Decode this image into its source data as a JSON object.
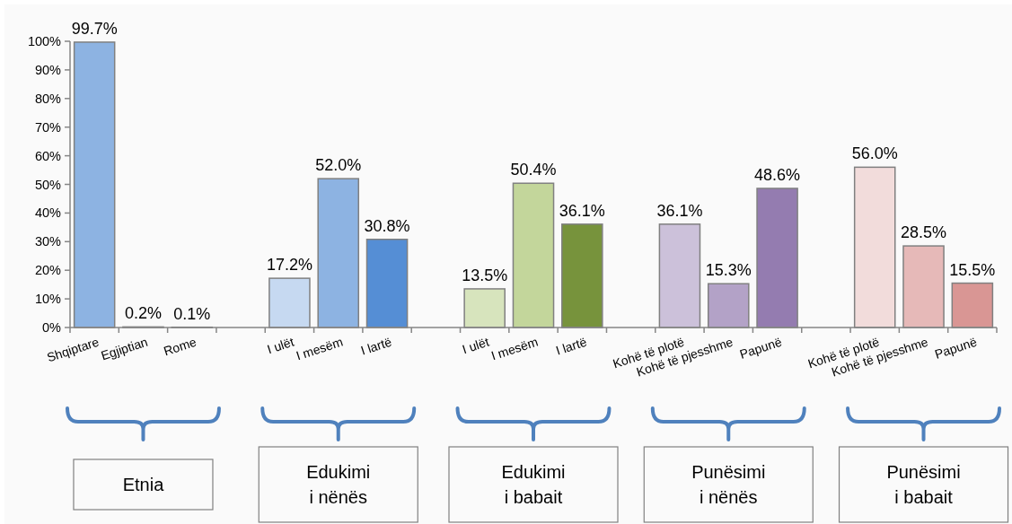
{
  "chart_data": {
    "type": "bar",
    "categories": [
      "Shqiptare",
      "Egjiptian",
      "Rome",
      null,
      "I ulët",
      "I mesëm",
      "I lartë",
      null,
      "I ulët",
      "I mesëm",
      "I lartë",
      null,
      "Kohë të plotë",
      "Kohë të pjesshme",
      "Papunë",
      null,
      "Kohë të plotë",
      "Kohë të pjesshme",
      "Papunë"
    ],
    "values": [
      99.7,
      0.2,
      0.1,
      null,
      17.2,
      52.0,
      30.8,
      null,
      13.5,
      50.4,
      36.1,
      null,
      36.1,
      15.3,
      48.6,
      null,
      56.0,
      28.5,
      15.5
    ],
    "colors": [
      "#8db3e2",
      "#8db3e2",
      "#8db3e2",
      null,
      "#c6d9f1",
      "#8db3e2",
      "#558ed5",
      null,
      "#d7e4bd",
      "#c3d69b",
      "#77933c",
      null,
      "#ccc1da",
      "#b3a2c7",
      "#947cb0",
      null,
      "#f2dcdb",
      "#e6b9b8",
      "#d99694"
    ],
    "value_labels": [
      "99.7%",
      "0.2%",
      "0.1%",
      null,
      "17.2%",
      "52.0%",
      "30.8%",
      null,
      "13.5%",
      "50.4%",
      "36.1%",
      null,
      "36.1%",
      "15.3%",
      "48.6%",
      null,
      "56.0%",
      "28.5%",
      "15.5%"
    ],
    "ylim": [
      0,
      100
    ],
    "yticks": [
      {
        "value": 0,
        "label": "0%"
      },
      {
        "value": 10,
        "label": "10%"
      },
      {
        "value": 20,
        "label": "20%"
      },
      {
        "value": 30,
        "label": "30%"
      },
      {
        "value": 40,
        "label": "40%"
      },
      {
        "value": 50,
        "label": "50%"
      },
      {
        "value": 60,
        "label": "60%"
      },
      {
        "value": 70,
        "label": "70%"
      },
      {
        "value": 80,
        "label": "80%"
      },
      {
        "value": 90,
        "label": "90%"
      },
      {
        "value": 100,
        "label": "100%"
      }
    ],
    "annotations": [
      "Etnia",
      "Edukimi i nënës",
      "Edukimi i babait",
      "Punësimi i nënës",
      "Punësimi i babait"
    ]
  }
}
